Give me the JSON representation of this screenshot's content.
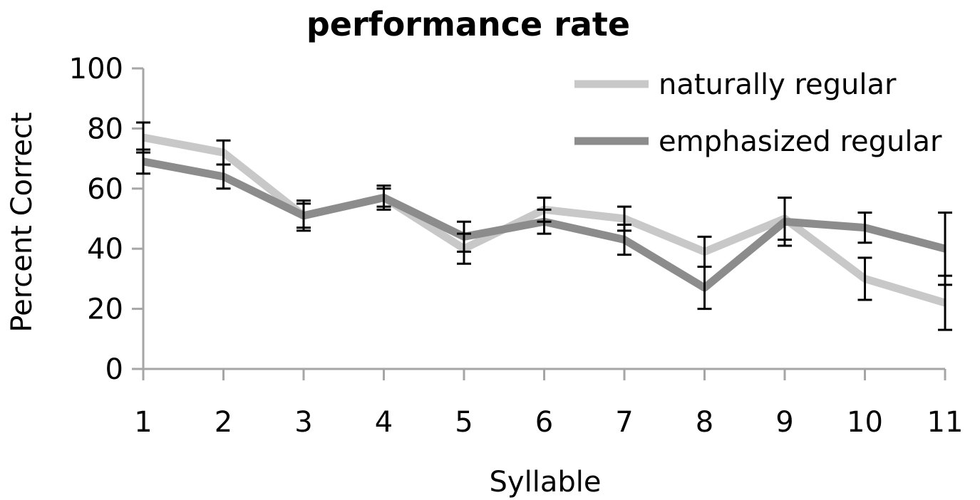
{
  "chart_data": {
    "type": "line",
    "title": "performance rate",
    "xlabel": "Syllable",
    "ylabel": "Percent Correct",
    "x": [
      1,
      2,
      3,
      4,
      5,
      6,
      7,
      8,
      9,
      10,
      11
    ],
    "ylim": [
      0,
      100
    ],
    "yticks": [
      0,
      20,
      40,
      60,
      80,
      100
    ],
    "grid": false,
    "legend_position": "top-right",
    "series": [
      {
        "name": "naturally regular",
        "color": "#c8c8c8",
        "values": [
          77,
          72,
          51,
          57,
          40,
          53,
          50,
          39,
          50,
          30,
          22
        ],
        "error": [
          5,
          4,
          4,
          3,
          5,
          4,
          4,
          5,
          7,
          7,
          9
        ]
      },
      {
        "name": "emphasized regular",
        "color": "#8c8c8c",
        "values": [
          69,
          64,
          51,
          57,
          44,
          49,
          43,
          27,
          49,
          47,
          40
        ],
        "error": [
          4,
          4,
          5,
          4,
          5,
          4,
          5,
          7,
          8,
          5,
          12
        ]
      }
    ]
  }
}
